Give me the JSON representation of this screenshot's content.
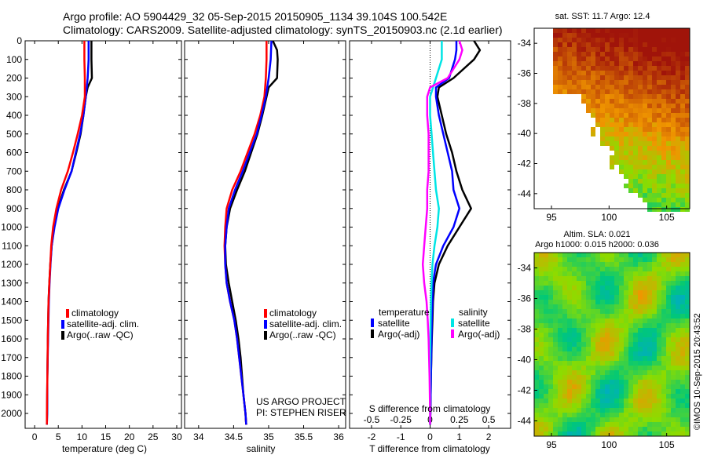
{
  "header": {
    "line1": "Argo profile: AO 5904429_32 05-Sep-2015 20150905_1134 39.104S 100.542E",
    "line2": "Climatology: CARS2009. Satellite-adjusted climatology: synTS_20150903.nc (2.1d earlier)"
  },
  "colors": {
    "climatology": "#ff0000",
    "satellite": "#0000ff",
    "argo": "#000000",
    "s_satellite": "#00e5e5",
    "s_argo": "#ff00ff"
  },
  "chart_data": [
    {
      "type": "line",
      "xlabel": "temperature (deg C)",
      "ylabel": "",
      "xlim": [
        -2,
        31
      ],
      "ylim": [
        2080,
        0
      ],
      "xticks": [
        "0",
        "5",
        "10",
        "15",
        "20",
        "25",
        "30"
      ],
      "yticks": [
        "0",
        "100",
        "200",
        "300",
        "400",
        "500",
        "600",
        "700",
        "800",
        "900",
        "1000",
        "1100",
        "1200",
        "1300",
        "1400",
        "1500",
        "1600",
        "1700",
        "1800",
        "1900",
        "2000"
      ],
      "legend": [
        "climatology",
        "satellite-adj. clim.",
        "Argo(..raw -QC)"
      ],
      "series": [
        {
          "name": "climatology",
          "y": [
            0,
            100,
            200,
            300,
            400,
            500,
            600,
            700,
            800,
            900,
            1000,
            1100,
            1200,
            1300,
            1400,
            1600,
            1800,
            2000,
            2060
          ],
          "x": [
            10.5,
            10.5,
            10.6,
            10.6,
            10.0,
            9.1,
            8.1,
            7.0,
            5.6,
            4.6,
            3.9,
            3.5,
            3.3,
            3.1,
            2.95,
            2.8,
            2.7,
            2.6,
            2.6
          ]
        },
        {
          "name": "satellite-adj. clim.",
          "y": [
            0,
            100,
            200,
            300,
            400,
            500,
            600,
            700,
            800,
            900,
            1000,
            1100,
            1200,
            1300,
            1400,
            1600,
            1800,
            2000,
            2060
          ],
          "x": [
            11.4,
            11.4,
            11.2,
            10.8,
            10.3,
            9.6,
            8.7,
            7.8,
            6.3,
            5.0,
            4.2,
            3.6,
            3.35,
            3.15,
            3.0,
            2.85,
            2.7,
            2.65,
            2.6
          ]
        },
        {
          "name": "Argo(..raw -QC)",
          "y": [
            0,
            100,
            200,
            250,
            300,
            400,
            500,
            600,
            700,
            800,
            900,
            1000,
            1100,
            1200,
            1300,
            1400,
            1600,
            1800,
            2000,
            2060
          ],
          "x": [
            12.0,
            12.0,
            12.1,
            11.2,
            10.8,
            10.3,
            9.7,
            8.8,
            7.8,
            6.2,
            4.9,
            4.1,
            3.6,
            3.3,
            3.1,
            2.95,
            2.8,
            2.7,
            2.65,
            2.6
          ]
        }
      ]
    },
    {
      "type": "line",
      "xlabel": "salinity",
      "ylabel": "",
      "xlim": [
        33.8,
        36.1
      ],
      "ylim": [
        2080,
        0
      ],
      "xticks": [
        "34",
        "34.5",
        "35",
        "35.5",
        "36"
      ],
      "legend": [
        "climatology",
        "satellite-adj. clim.",
        "Argo(..raw -QC)"
      ],
      "annotation": [
        "US ARGO PROJECT",
        "PI: STEPHEN RISER"
      ],
      "series": [
        {
          "name": "climatology",
          "y": [
            0,
            100,
            200,
            300,
            400,
            500,
            600,
            700,
            800,
            900,
            1000,
            1100,
            1200,
            1300,
            1400,
            1500,
            1600,
            1700,
            1800,
            1900,
            2000,
            2060
          ],
          "x": [
            34.97,
            34.97,
            34.96,
            34.94,
            34.88,
            34.8,
            34.7,
            34.6,
            34.48,
            34.4,
            34.38,
            34.37,
            34.38,
            34.4,
            34.45,
            34.51,
            34.55,
            34.58,
            34.61,
            34.64,
            34.67,
            34.68
          ]
        },
        {
          "name": "satellite-adj. clim.",
          "y": [
            0,
            100,
            200,
            300,
            400,
            500,
            600,
            700,
            800,
            900,
            1000,
            1100,
            1200,
            1300,
            1400,
            1500,
            1600,
            1700,
            1800,
            1900,
            2000,
            2060
          ],
          "x": [
            35.04,
            35.03,
            35.0,
            34.96,
            34.9,
            34.83,
            34.73,
            34.63,
            34.52,
            34.43,
            34.4,
            34.38,
            34.38,
            34.4,
            34.45,
            34.51,
            34.55,
            34.58,
            34.61,
            34.64,
            34.67,
            34.68
          ]
        },
        {
          "name": "Argo(..raw -QC)",
          "y": [
            0,
            50,
            100,
            200,
            250,
            300,
            400,
            500,
            600,
            700,
            800,
            900,
            1000,
            1100,
            1200,
            1300,
            1400,
            1500,
            1600,
            1700,
            1800,
            1900,
            2000,
            2060
          ],
          "x": [
            35.06,
            35.12,
            35.13,
            35.12,
            35.0,
            34.97,
            34.91,
            34.84,
            34.75,
            34.66,
            34.55,
            34.45,
            34.4,
            34.38,
            34.39,
            34.43,
            34.48,
            34.53,
            34.57,
            34.6,
            34.62,
            34.64,
            34.67,
            34.68
          ]
        }
      ]
    },
    {
      "type": "line",
      "xlabel": "T difference from climatology",
      "ylabel": "",
      "xlim": [
        -2.75,
        2.75
      ],
      "ylim": [
        2080,
        0
      ],
      "xticks": [
        "-2",
        "-1",
        "0",
        "1",
        "2"
      ],
      "top_xlabel": "S difference from climatology",
      "top_xticks": [
        "-0.5",
        "-0.25",
        "0",
        "0.25",
        "0.5"
      ],
      "legend_groups": [
        {
          "title": "temperature",
          "items": [
            "satellite",
            "Argo(-adj)"
          ]
        },
        {
          "title": "salinity",
          "items": [
            "satellite",
            "Argo(-adj)"
          ]
        }
      ],
      "series": [
        {
          "name": "temperature satellite",
          "y": [
            0,
            50,
            100,
            200,
            250,
            300,
            400,
            500,
            600,
            700,
            800,
            900,
            1000,
            1100,
            1200,
            1300,
            1400,
            1500,
            1600,
            1800,
            2000,
            2060
          ],
          "x": [
            0.9,
            0.9,
            0.85,
            0.65,
            0.2,
            0.2,
            0.3,
            0.45,
            0.6,
            0.75,
            0.8,
            1.0,
            0.8,
            0.45,
            0.2,
            0.1,
            0.08,
            0.06,
            0.05,
            0.03,
            0.01,
            0.0
          ]
        },
        {
          "name": "temperature Argo(-adj)",
          "y": [
            0,
            50,
            100,
            200,
            250,
            300,
            400,
            500,
            600,
            700,
            800,
            900,
            1000,
            1100,
            1200,
            1300,
            1400,
            1500,
            1600,
            1800,
            2000,
            2060
          ],
          "x": [
            1.5,
            1.7,
            1.5,
            0.8,
            0.3,
            0.25,
            0.4,
            0.55,
            0.75,
            0.9,
            1.1,
            1.4,
            1.0,
            0.6,
            0.3,
            0.15,
            0.1,
            0.08,
            0.06,
            0.03,
            0.01,
            0.0
          ]
        },
        {
          "name": "salinity satellite",
          "y": [
            0,
            100,
            200,
            300,
            400,
            500,
            600,
            700,
            800,
            900,
            1000,
            1100,
            1200,
            1300,
            1400,
            1500,
            1600,
            1800,
            2000,
            2060
          ],
          "x": [
            0.4,
            0.4,
            0.2,
            0.0,
            0.0,
            0.05,
            0.1,
            0.15,
            0.2,
            0.3,
            0.25,
            0.15,
            0.08,
            0.05,
            0.03,
            0.02,
            0.01,
            0.0,
            0.0,
            0.0
          ]
        },
        {
          "name": "salinity Argo(-adj)",
          "y": [
            0,
            50,
            100,
            200,
            250,
            300,
            400,
            500,
            600,
            700,
            800,
            900,
            1000,
            1100,
            1200,
            1300,
            1400,
            1500,
            1600,
            1800,
            2000,
            2060
          ],
          "x": [
            1.0,
            1.1,
            1.0,
            0.6,
            0.0,
            -0.1,
            -0.1,
            -0.05,
            -0.05,
            -0.05,
            -0.1,
            -0.1,
            -0.15,
            -0.2,
            -0.25,
            -0.2,
            -0.12,
            -0.08,
            -0.05,
            -0.02,
            0.0,
            0.0
          ]
        }
      ]
    }
  ],
  "maps": {
    "sst": {
      "title": "sat. SST: 11.7 Argo: 12.4",
      "xticks": [
        "95",
        "100",
        "105"
      ],
      "yticks": [
        "-34",
        "-36",
        "-38",
        "-40",
        "-42",
        "-44"
      ]
    },
    "sla": {
      "title1": "Altim. SLA: 0.021",
      "title2": "Argo h1000: 0.015 h2000: 0.036",
      "xticks": [
        "95",
        "100",
        "105"
      ],
      "yticks": [
        "-34",
        "-36",
        "-38",
        "-40",
        "-42",
        "-44"
      ]
    }
  },
  "stamp": "©IMOS 10-Sep-2015 20:43:52"
}
